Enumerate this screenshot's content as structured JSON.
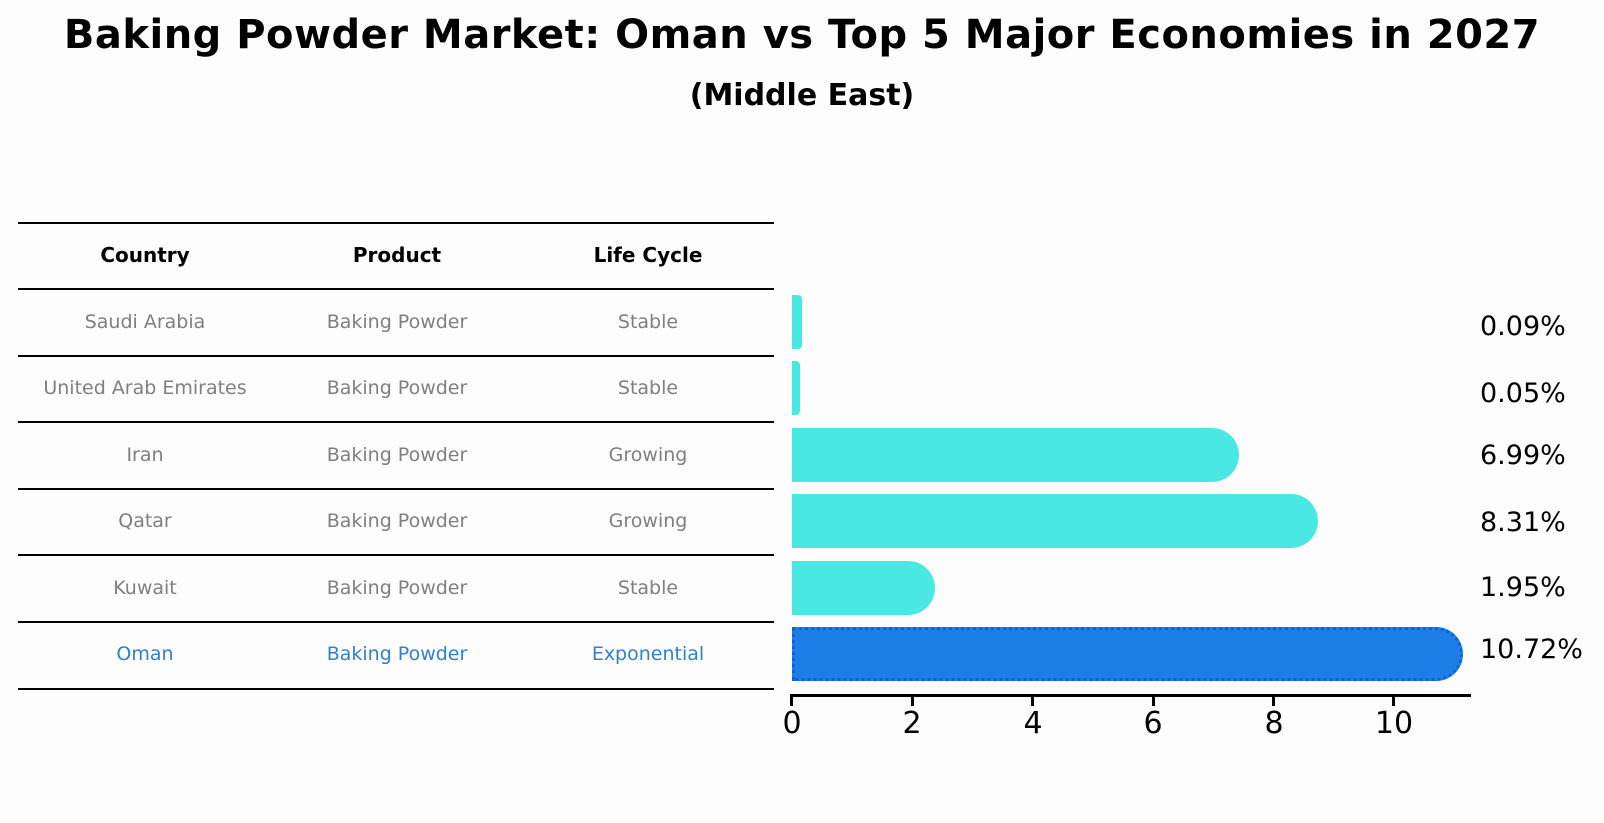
{
  "title": "Baking Powder Market: Oman vs Top 5 Major Economies in 2027",
  "subtitle": "(Middle East)",
  "table": {
    "headers": [
      "Country",
      "Product",
      "Life Cycle"
    ],
    "rows": [
      {
        "country": "Saudi Arabia",
        "product": "Baking Powder",
        "life_cycle": "Stable",
        "highlight": false
      },
      {
        "country": "United Arab Emirates",
        "product": "Baking Powder",
        "life_cycle": "Stable",
        "highlight": false
      },
      {
        "country": "Iran",
        "product": "Baking Powder",
        "life_cycle": "Growing",
        "highlight": false
      },
      {
        "country": "Qatar",
        "product": "Baking Powder",
        "life_cycle": "Growing",
        "highlight": false
      },
      {
        "country": "Kuwait",
        "product": "Baking Powder",
        "life_cycle": "Stable",
        "highlight": false
      },
      {
        "country": "Oman",
        "product": "Baking Powder",
        "life_cycle": "Exponential",
        "highlight": true
      }
    ]
  },
  "chart_data": {
    "type": "bar",
    "orientation": "horizontal",
    "title": "Baking Powder Market: Oman vs Top 5 Major Economies in 2027",
    "subtitle": "(Middle East)",
    "categories": [
      "Saudi Arabia",
      "United Arab Emirates",
      "Iran",
      "Qatar",
      "Kuwait",
      "Oman"
    ],
    "values": [
      0.09,
      0.05,
      6.99,
      8.31,
      1.95,
      10.72
    ],
    "labels": [
      "0.09%",
      "0.05%",
      "6.99%",
      "8.31%",
      "1.95%",
      "10.72%"
    ],
    "unit": "%",
    "x_ticks": [
      0,
      2,
      4,
      6,
      8,
      10
    ],
    "xlim": [
      0,
      11.26
    ],
    "grid": false,
    "legend": "none",
    "bar_color": "#49e8e2",
    "highlight_index": 5,
    "highlight_color": "#1e7ee8",
    "highlight_border_color": "#0c63da"
  },
  "colors": {
    "background": "#fdfdfe",
    "table_line": "#000000",
    "header_text": "#000000",
    "row_text": "#7f7f7f",
    "highlight_text": "#2f80d0",
    "axis": "#000000"
  }
}
